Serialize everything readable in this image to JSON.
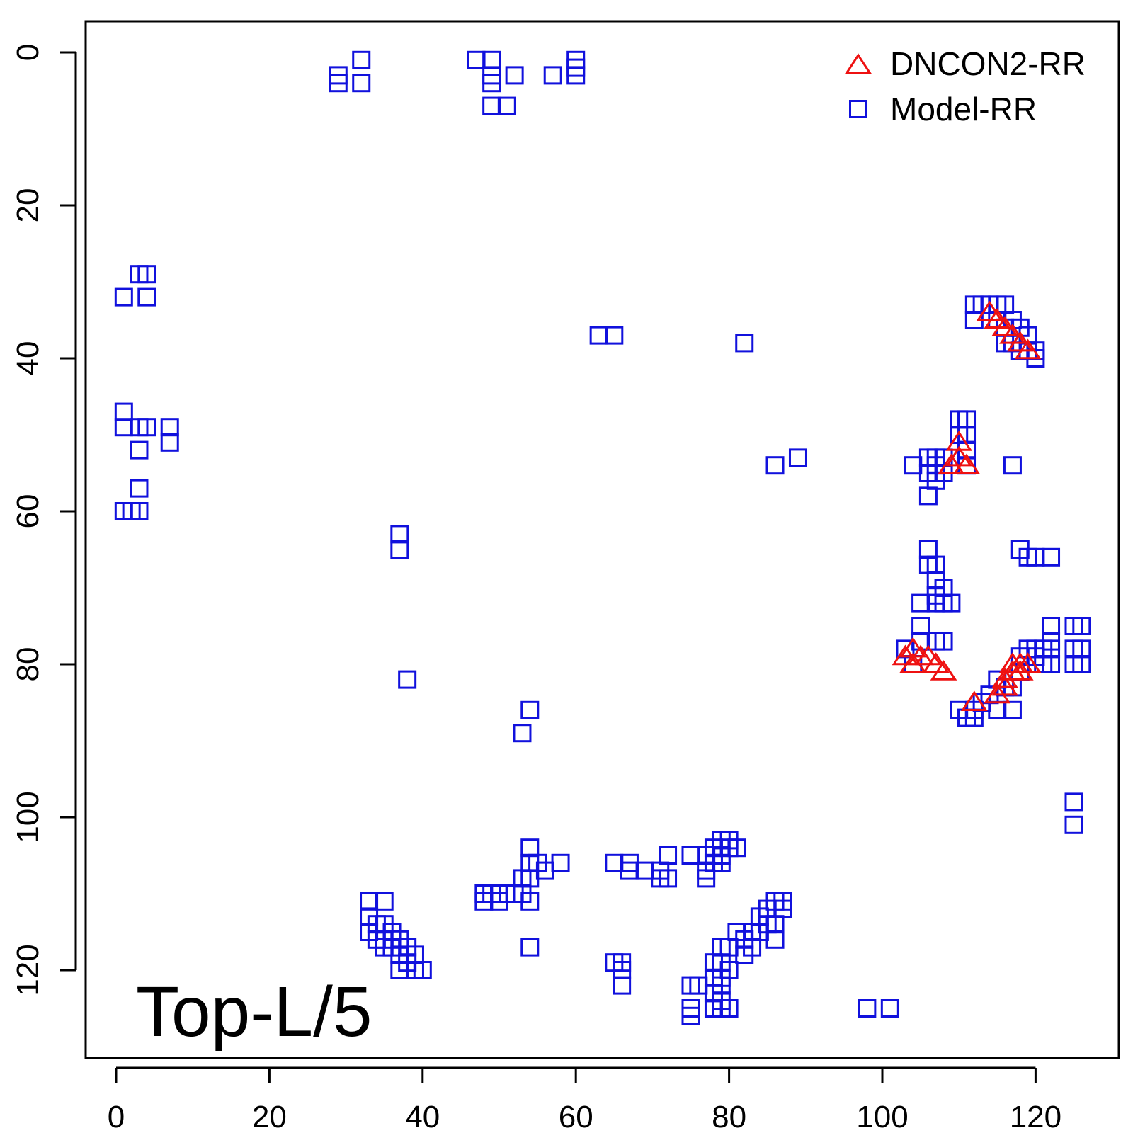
{
  "chart_data": {
    "type": "scatter",
    "annotation": "Top-L/5",
    "xlim": [
      -4,
      127
    ],
    "ylim_reversed": [
      -4,
      131
    ],
    "x_ticks": [
      0,
      20,
      40,
      60,
      80,
      100,
      120
    ],
    "y_ticks": [
      0,
      20,
      40,
      60,
      80,
      100,
      120
    ],
    "legend_position": "top-right",
    "grid": false,
    "series": [
      {
        "name": "DNCON2-RR",
        "marker": "triangle",
        "color": "#ee1111",
        "points": [
          [
            114,
            34
          ],
          [
            115,
            35
          ],
          [
            116,
            36
          ],
          [
            117,
            37
          ],
          [
            118,
            38
          ],
          [
            119,
            39
          ],
          [
            110,
            51
          ],
          [
            110,
            53
          ],
          [
            109,
            54
          ],
          [
            111,
            54
          ],
          [
            103,
            79
          ],
          [
            104,
            78
          ],
          [
            104,
            80
          ],
          [
            105,
            79
          ],
          [
            106,
            79
          ],
          [
            107,
            80
          ],
          [
            108,
            81
          ],
          [
            112,
            85
          ],
          [
            115,
            84
          ],
          [
            116,
            83
          ],
          [
            116,
            82
          ],
          [
            117,
            81
          ],
          [
            117,
            80
          ],
          [
            118,
            81
          ],
          [
            118,
            80
          ],
          [
            119,
            80
          ]
        ]
      },
      {
        "name": "Model-RR",
        "marker": "square",
        "color": "#1111dd",
        "points": [
          [
            29,
            3
          ],
          [
            29,
            4
          ],
          [
            32,
            1
          ],
          [
            32,
            4
          ],
          [
            47,
            1
          ],
          [
            49,
            1
          ],
          [
            49,
            3
          ],
          [
            49,
            4
          ],
          [
            49,
            7
          ],
          [
            51,
            7
          ],
          [
            52,
            3
          ],
          [
            57,
            3
          ],
          [
            60,
            1
          ],
          [
            60,
            2
          ],
          [
            60,
            3
          ],
          [
            1,
            32
          ],
          [
            3,
            29
          ],
          [
            4,
            29
          ],
          [
            4,
            32
          ],
          [
            1,
            47
          ],
          [
            1,
            49
          ],
          [
            3,
            49
          ],
          [
            3,
            52
          ],
          [
            3,
            57
          ],
          [
            4,
            49
          ],
          [
            7,
            49
          ],
          [
            7,
            51
          ],
          [
            1,
            60
          ],
          [
            2,
            60
          ],
          [
            3,
            60
          ],
          [
            37,
            63
          ],
          [
            37,
            65
          ],
          [
            38,
            82
          ],
          [
            63,
            37
          ],
          [
            65,
            37
          ],
          [
            82,
            38
          ],
          [
            86,
            54
          ],
          [
            89,
            53
          ],
          [
            112,
            33
          ],
          [
            112,
            35
          ],
          [
            113,
            33
          ],
          [
            114,
            33
          ],
          [
            115,
            33
          ],
          [
            115,
            35
          ],
          [
            116,
            33
          ],
          [
            116,
            36
          ],
          [
            116,
            38
          ],
          [
            117,
            35
          ],
          [
            117,
            38
          ],
          [
            118,
            36
          ],
          [
            118,
            39
          ],
          [
            119,
            37
          ],
          [
            119,
            39
          ],
          [
            120,
            39
          ],
          [
            120,
            40
          ],
          [
            110,
            48
          ],
          [
            110,
            50
          ],
          [
            111,
            48
          ],
          [
            111,
            50
          ],
          [
            111,
            52
          ],
          [
            111,
            54
          ],
          [
            104,
            54
          ],
          [
            106,
            53
          ],
          [
            106,
            55
          ],
          [
            106,
            58
          ],
          [
            107,
            53
          ],
          [
            107,
            54
          ],
          [
            107,
            56
          ],
          [
            108,
            53
          ],
          [
            108,
            55
          ],
          [
            117,
            54
          ],
          [
            106,
            65
          ],
          [
            106,
            67
          ],
          [
            107,
            67
          ],
          [
            107,
            69
          ],
          [
            107,
            71
          ],
          [
            107,
            72
          ],
          [
            108,
            70
          ],
          [
            108,
            72
          ],
          [
            109,
            72
          ],
          [
            105,
            72
          ],
          [
            105,
            75
          ],
          [
            105,
            77
          ],
          [
            107,
            77
          ],
          [
            108,
            77
          ],
          [
            103,
            78
          ],
          [
            104,
            80
          ],
          [
            118,
            65
          ],
          [
            119,
            66
          ],
          [
            120,
            66
          ],
          [
            122,
            66
          ],
          [
            122,
            75
          ],
          [
            122,
            77
          ],
          [
            121,
            78
          ],
          [
            122,
            78
          ],
          [
            120,
            79
          ],
          [
            121,
            80
          ],
          [
            122,
            80
          ],
          [
            125,
            75
          ],
          [
            126,
            75
          ],
          [
            125,
            78
          ],
          [
            125,
            80
          ],
          [
            126,
            78
          ],
          [
            126,
            80
          ],
          [
            110,
            86
          ],
          [
            111,
            87
          ],
          [
            112,
            86
          ],
          [
            112,
            87
          ],
          [
            113,
            85
          ],
          [
            114,
            84
          ],
          [
            115,
            82
          ],
          [
            115,
            86
          ],
          [
            116,
            83
          ],
          [
            117,
            86
          ],
          [
            117,
            83
          ],
          [
            118,
            81
          ],
          [
            118,
            79
          ],
          [
            119,
            78
          ],
          [
            120,
            78
          ],
          [
            125,
            98
          ],
          [
            125,
            101
          ],
          [
            53,
            89
          ],
          [
            54,
            86
          ],
          [
            33,
            111
          ],
          [
            33,
            113
          ],
          [
            33,
            115
          ],
          [
            34,
            114
          ],
          [
            34,
            116
          ],
          [
            35,
            111
          ],
          [
            35,
            114
          ],
          [
            35,
            116
          ],
          [
            35,
            117
          ],
          [
            36,
            115
          ],
          [
            36,
            117
          ],
          [
            37,
            116
          ],
          [
            37,
            118
          ],
          [
            37,
            120
          ],
          [
            38,
            117
          ],
          [
            38,
            119
          ],
          [
            39,
            118
          ],
          [
            39,
            120
          ],
          [
            40,
            120
          ],
          [
            48,
            110
          ],
          [
            48,
            111
          ],
          [
            49,
            110
          ],
          [
            50,
            110
          ],
          [
            50,
            111
          ],
          [
            52,
            110
          ],
          [
            53,
            108
          ],
          [
            53,
            110
          ],
          [
            54,
            104
          ],
          [
            54,
            106
          ],
          [
            54,
            108
          ],
          [
            54,
            111
          ],
          [
            55,
            106
          ],
          [
            56,
            107
          ],
          [
            58,
            106
          ],
          [
            54,
            117
          ],
          [
            65,
            106
          ],
          [
            67,
            106
          ],
          [
            67,
            107
          ],
          [
            69,
            107
          ],
          [
            71,
            107
          ],
          [
            71,
            108
          ],
          [
            72,
            105
          ],
          [
            72,
            108
          ],
          [
            75,
            105
          ],
          [
            77,
            105
          ],
          [
            77,
            107
          ],
          [
            77,
            108
          ],
          [
            78,
            104
          ],
          [
            78,
            106
          ],
          [
            79,
            103
          ],
          [
            79,
            105
          ],
          [
            79,
            106
          ],
          [
            80,
            103
          ],
          [
            80,
            104
          ],
          [
            81,
            104
          ],
          [
            65,
            119
          ],
          [
            66,
            119
          ],
          [
            66,
            120
          ],
          [
            66,
            122
          ],
          [
            75,
            122
          ],
          [
            75,
            125
          ],
          [
            75,
            126
          ],
          [
            76,
            122
          ],
          [
            78,
            119
          ],
          [
            78,
            121
          ],
          [
            78,
            123
          ],
          [
            78,
            125
          ],
          [
            79,
            117
          ],
          [
            79,
            119
          ],
          [
            79,
            121
          ],
          [
            79,
            122
          ],
          [
            79,
            124
          ],
          [
            79,
            125
          ],
          [
            80,
            117
          ],
          [
            80,
            120
          ],
          [
            80,
            125
          ],
          [
            81,
            115
          ],
          [
            82,
            116
          ],
          [
            82,
            118
          ],
          [
            83,
            115
          ],
          [
            83,
            117
          ],
          [
            84,
            113
          ],
          [
            84,
            115
          ],
          [
            85,
            112
          ],
          [
            85,
            114
          ],
          [
            86,
            111
          ],
          [
            86,
            114
          ],
          [
            86,
            116
          ],
          [
            87,
            111
          ],
          [
            87,
            112
          ],
          [
            98,
            125
          ],
          [
            101,
            125
          ]
        ]
      }
    ]
  }
}
